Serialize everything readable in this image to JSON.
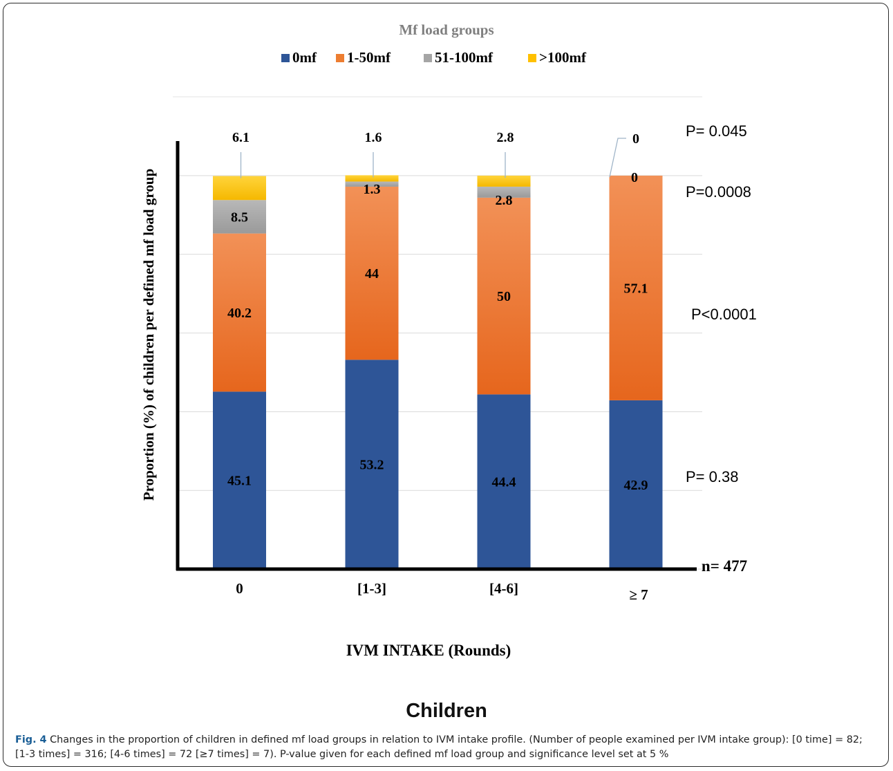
{
  "chart_data": {
    "type": "bar",
    "stacked": true,
    "title": "Mf load groups",
    "xlabel": "IVM INTAKE (Rounds)",
    "ylabel": "Proportion (%) of children  per defined mf load  group",
    "categories": [
      "0",
      "[1-3]",
      "[4-6]",
      "≥ 7"
    ],
    "ylim": [
      0,
      100
    ],
    "grid": true,
    "legend_position": "top-center",
    "series": [
      {
        "name": "0mf",
        "color": "#2e5597",
        "values": [
          45.1,
          53.2,
          44.4,
          42.9
        ],
        "labels": [
          "45.1",
          "53.2",
          "44.4",
          "42.9"
        ]
      },
      {
        "name": "1-50mf",
        "color": "#ed7d31",
        "values": [
          40.2,
          44,
          50,
          57.1
        ],
        "labels": [
          "40.2",
          "44",
          "50",
          "57.1"
        ]
      },
      {
        "name": "51-100mf",
        "color": "#a5a5a5",
        "values": [
          8.5,
          1.3,
          2.8,
          0
        ],
        "labels": [
          "8.5",
          "1.3",
          "2.8",
          "0"
        ]
      },
      {
        "name": ">100mf",
        "color": "#ffc000",
        "values": [
          6.1,
          1.6,
          2.8,
          0
        ],
        "labels": [
          "6.1",
          "1.6",
          "2.8",
          "0"
        ]
      }
    ],
    "p_values": [
      {
        "series": ">100mf",
        "text": "P= 0.045"
      },
      {
        "series": "51-100mf",
        "text": "P=0.0008"
      },
      {
        "series": "1-50mf",
        "text": "P<0.0001"
      },
      {
        "series": "0mf",
        "text": "P= 0.38"
      }
    ],
    "n_label": "n= 477"
  },
  "figure": {
    "title": "Children",
    "caption_label": "Fig. 4",
    "caption_text": " Changes in the proportion of children in defined mf load groups in relation to IVM intake profile. (Number of people examined per IVM intake group): [0 time] = 82; [1-3 times] = 316; [4-6 times] = 72 [≥7 times] = 7). P-value given for each defined mf load group and significance level set at 5 %"
  }
}
